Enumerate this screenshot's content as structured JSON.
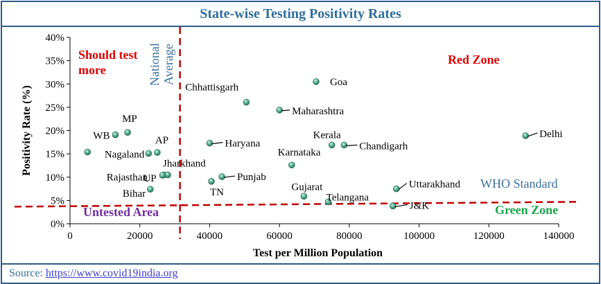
{
  "chart_data": {
    "type": "scatter",
    "title": "State-wise Testing Positivity Rates",
    "xlabel": "Test per Million Population",
    "ylabel": "Positivity Rate (%)",
    "xlim": [
      0,
      140000
    ],
    "ylim": [
      0,
      40
    ],
    "x_ticks": [
      "0",
      "20000",
      "40000",
      "60000",
      "80000",
      "100000",
      "120000",
      "140000"
    ],
    "y_ticks": [
      "0%",
      "5%",
      "10%",
      "15%",
      "20%",
      "25%",
      "30%",
      "35%",
      "40%"
    ],
    "national_average_x": 31500,
    "who_standard_y": 5,
    "points": [
      {
        "label": "",
        "x": 5000,
        "y": 15.4
      },
      {
        "label": "WB",
        "x": 13000,
        "y": 19.1
      },
      {
        "label": "MP",
        "x": 16500,
        "y": 19.6
      },
      {
        "label": "Nagaland",
        "x": 22500,
        "y": 15.1
      },
      {
        "label": "AP",
        "x": 25000,
        "y": 15.3
      },
      {
        "label": "Rajasthan",
        "x": 27000,
        "y": 10.5
      },
      {
        "label": "Jharkhand",
        "x": 28000,
        "y": 10.5
      },
      {
        "label": "UP",
        "x": 26500,
        "y": 10.4
      },
      {
        "label": "Bihar",
        "x": 23000,
        "y": 7.4
      },
      {
        "label": "Chhattisgarh",
        "x": 50500,
        "y": 26.1
      },
      {
        "label": "Haryana",
        "x": 40000,
        "y": 17.3
      },
      {
        "label": "Punjab",
        "x": 43500,
        "y": 10.1
      },
      {
        "label": "TN",
        "x": 40500,
        "y": 9.1
      },
      {
        "label": "Maharashtra",
        "x": 60000,
        "y": 24.4
      },
      {
        "label": "Goa",
        "x": 70500,
        "y": 30.5
      },
      {
        "label": "Karnataka",
        "x": 63500,
        "y": 12.6
      },
      {
        "label": "Kerala",
        "x": 75000,
        "y": 16.9
      },
      {
        "label": "Chandigarh",
        "x": 78500,
        "y": 16.9
      },
      {
        "label": "Gujarat",
        "x": 67000,
        "y": 5.9
      },
      {
        "label": "Telangana",
        "x": 74000,
        "y": 4.7
      },
      {
        "label": "Uttarakhand",
        "x": 93500,
        "y": 7.5
      },
      {
        "label": "J&K",
        "x": 92500,
        "y": 3.8
      },
      {
        "label": "Delhi",
        "x": 130500,
        "y": 18.9
      }
    ],
    "annotations": {
      "national_average": "National\nAverage",
      "who_standard": "WHO Standard",
      "should_test_more": "Should test\nmore",
      "red_zone": "Red Zone",
      "green_zone": "Green Zone",
      "untested_area": "Untested Area"
    }
  },
  "source": {
    "prefix": "Source: ",
    "link": "https://www.covid19india.org"
  },
  "colors": {
    "marker": "#4aa88a",
    "ref_line": "#c00000",
    "title": "#2e6e9e",
    "frame": "#2e5c8a",
    "red_text": "#e00000",
    "green_text": "#1aa84a",
    "purple_text": "#7030a0",
    "blue_text": "#3b6fa0"
  }
}
